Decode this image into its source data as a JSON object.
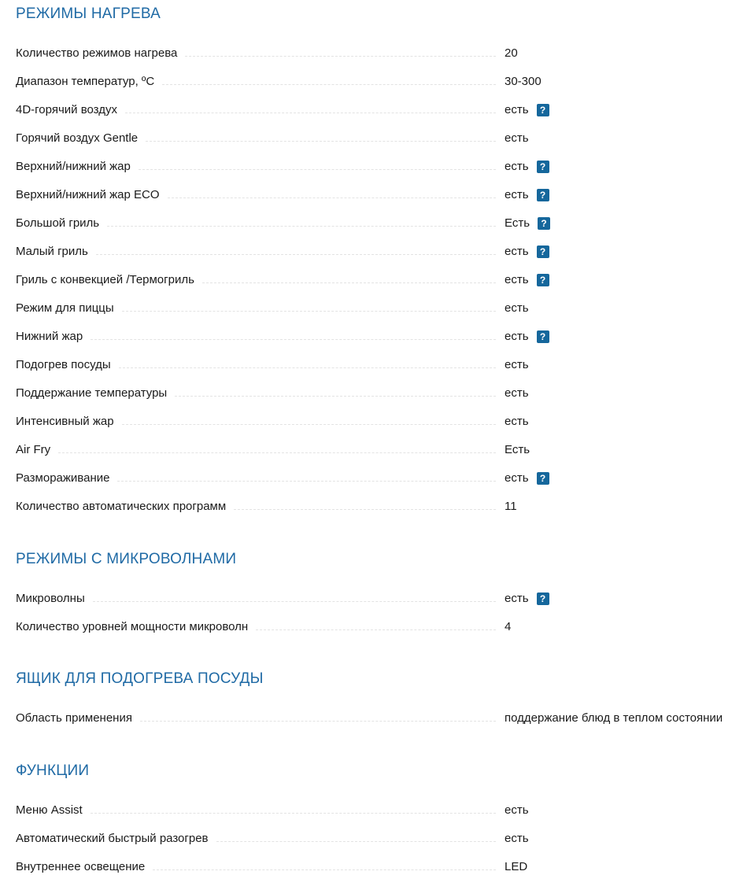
{
  "accent_color": "#1f6aa5",
  "help_icon_color": "#15679c",
  "help_icon_glyph": "?",
  "sections": [
    {
      "title": "РЕЖИМЫ НАГРЕВА",
      "rows": [
        {
          "label": "Количество режимов нагрева",
          "value": "20",
          "help": false
        },
        {
          "label": "Диапазон температур, ºC",
          "value": "30-300",
          "help": false
        },
        {
          "label": "4D-горячий воздух",
          "value": "есть",
          "help": true
        },
        {
          "label": "Горячий воздух Gentle",
          "value": "есть",
          "help": false
        },
        {
          "label": "Верхний/нижний жар",
          "value": "есть",
          "help": true
        },
        {
          "label": "Верхний/нижний жар ECO",
          "value": "есть",
          "help": true
        },
        {
          "label": "Большой гриль",
          "value": "Есть",
          "help": true
        },
        {
          "label": "Малый гриль",
          "value": "есть",
          "help": true
        },
        {
          "label": "Гриль с конвекцией /Термогриль",
          "value": "есть",
          "help": true
        },
        {
          "label": "Режим для пиццы",
          "value": "есть",
          "help": false
        },
        {
          "label": "Нижний жар",
          "value": "есть",
          "help": true
        },
        {
          "label": "Подогрев посуды",
          "value": "есть",
          "help": false
        },
        {
          "label": "Поддержание температуры",
          "value": "есть",
          "help": false
        },
        {
          "label": "Интенсивный жар",
          "value": "есть",
          "help": false
        },
        {
          "label": "Air Fry",
          "value": "Есть",
          "help": false
        },
        {
          "label": "Размораживание",
          "value": "есть",
          "help": true
        },
        {
          "label": "Количество автоматических программ",
          "value": "11",
          "help": false
        }
      ]
    },
    {
      "title": "РЕЖИМЫ С МИКРОВОЛНАМИ",
      "rows": [
        {
          "label": "Микроволны",
          "value": "есть",
          "help": true
        },
        {
          "label": "Количество уровней мощности микроволн",
          "value": "4",
          "help": false
        }
      ]
    },
    {
      "title": "ЯЩИК ДЛЯ ПОДОГРЕВА ПОСУДЫ",
      "rows": [
        {
          "label": "Область применения",
          "value": "поддержание блюд в теплом состоянии",
          "help": false
        }
      ]
    },
    {
      "title": "ФУНКЦИИ",
      "rows": [
        {
          "label": "Меню Assist",
          "value": "есть",
          "help": false
        },
        {
          "label": "Автоматический быстрый разогрев",
          "value": "есть",
          "help": false
        },
        {
          "label": "Внутреннее освещение",
          "value": "LED",
          "help": false
        }
      ]
    }
  ]
}
